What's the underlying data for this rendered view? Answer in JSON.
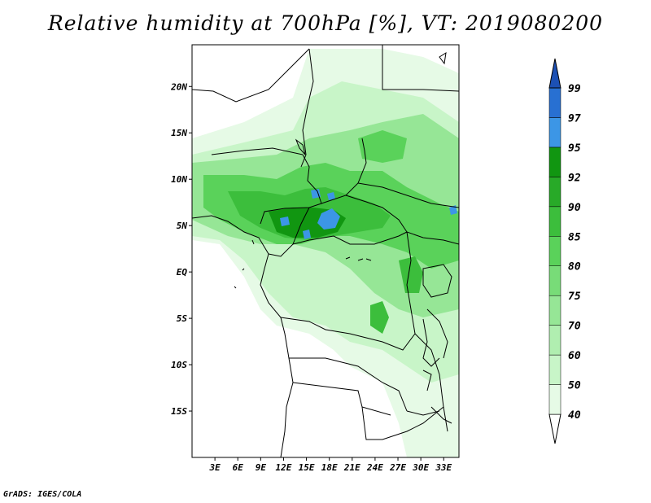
{
  "title": "Relative humidity at 700hPa [%], VT: 2019080200",
  "credit": "GrADS: IGES/COLA",
  "map": {
    "lon_range": [
      0,
      35
    ],
    "lat_range": [
      -20,
      24.5
    ],
    "x_ticks": [
      "3E",
      "6E",
      "9E",
      "12E",
      "15E",
      "18E",
      "21E",
      "24E",
      "27E",
      "30E",
      "33E"
    ],
    "x_tick_values": [
      3,
      6,
      9,
      12,
      15,
      18,
      21,
      24,
      27,
      30,
      33
    ],
    "y_ticks": [
      "20N",
      "15N",
      "10N",
      "5N",
      "EQ",
      "5S",
      "10S",
      "15S"
    ],
    "y_tick_values": [
      20,
      15,
      10,
      5,
      0,
      -5,
      -10,
      -15
    ]
  },
  "colorbar": {
    "labels": [
      "40",
      "50",
      "60",
      "70",
      "75",
      "80",
      "85",
      "90",
      "92",
      "95",
      "97",
      "99"
    ],
    "colors": [
      "#ffffff",
      "#e6fae6",
      "#c8f5c8",
      "#b0eeb0",
      "#96e696",
      "#78dc78",
      "#5ad25a",
      "#3cbe3c",
      "#28aa28",
      "#119611",
      "#3c96e6",
      "#2870d2",
      "#1c50b4"
    ]
  }
}
